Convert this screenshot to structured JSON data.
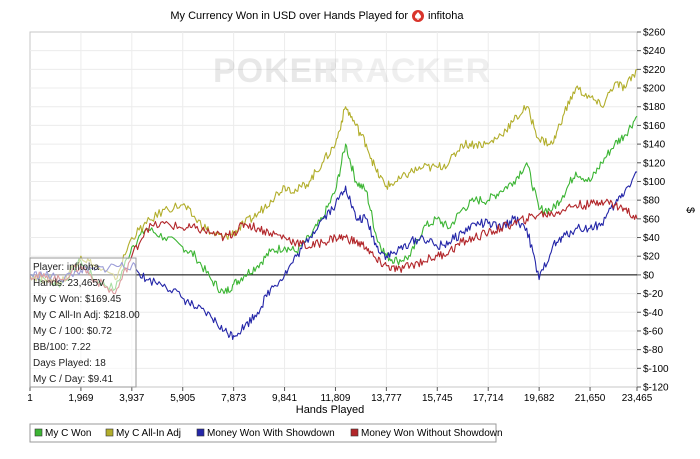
{
  "chart_data": {
    "type": "line",
    "title_text": "My Currency Won in USD over Hands Played for",
    "player_name": "infitoha",
    "watermark": {
      "left": "POKER",
      "right": "TRACKER"
    },
    "xlabel": "Hands Played",
    "ylabel": "$",
    "xlim": [
      1,
      23465
    ],
    "ylim": [
      -120,
      260
    ],
    "x_ticks": [
      1,
      1969,
      3937,
      5905,
      7873,
      9841,
      11809,
      13777,
      15745,
      17714,
      19682,
      21650,
      23465
    ],
    "x_tick_labels": [
      "1",
      "1,969",
      "3,937",
      "5,905",
      "7,873",
      "9,841",
      "11,809",
      "13,777",
      "15,745",
      "17,714",
      "19,682",
      "21,650",
      "23,465"
    ],
    "y_ticks": [
      -120,
      -100,
      -80,
      -60,
      -40,
      -20,
      0,
      20,
      40,
      60,
      80,
      100,
      120,
      140,
      160,
      180,
      200,
      220,
      240,
      260
    ],
    "y_tick_labels": [
      "$-120",
      "$-100",
      "$-80",
      "$-60",
      "$-40",
      "$-20",
      "$0",
      "$20",
      "$40",
      "$60",
      "$80",
      "$100",
      "$120",
      "$140",
      "$160",
      "$180",
      "$200",
      "$220",
      "$240",
      "$260"
    ],
    "grid": true,
    "zero_line": true,
    "legend_position": "bottom",
    "series": [
      {
        "name": "My C Won",
        "color": "#3cb534",
        "points": [
          [
            1,
            0
          ],
          [
            600,
            -5
          ],
          [
            1200,
            -10
          ],
          [
            1969,
            15
          ],
          [
            2500,
            -5
          ],
          [
            3300,
            -15
          ],
          [
            3937,
            30
          ],
          [
            4500,
            50
          ],
          [
            5200,
            40
          ],
          [
            5905,
            30
          ],
          [
            6400,
            20
          ],
          [
            7000,
            -5
          ],
          [
            7500,
            -20
          ],
          [
            7873,
            -10
          ],
          [
            8300,
            0
          ],
          [
            8800,
            10
          ],
          [
            9300,
            25
          ],
          [
            9841,
            30
          ],
          [
            10300,
            25
          ],
          [
            10800,
            40
          ],
          [
            11300,
            60
          ],
          [
            11809,
            90
          ],
          [
            12200,
            140
          ],
          [
            12600,
            100
          ],
          [
            13000,
            90
          ],
          [
            13400,
            40
          ],
          [
            13777,
            20
          ],
          [
            14200,
            15
          ],
          [
            14700,
            20
          ],
          [
            15200,
            50
          ],
          [
            15745,
            60
          ],
          [
            16200,
            50
          ],
          [
            16700,
            70
          ],
          [
            17200,
            80
          ],
          [
            17714,
            80
          ],
          [
            18200,
            90
          ],
          [
            18700,
            100
          ],
          [
            19200,
            120
          ],
          [
            19682,
            70
          ],
          [
            20200,
            70
          ],
          [
            20600,
            85
          ],
          [
            21100,
            110
          ],
          [
            21650,
            100
          ],
          [
            22100,
            120
          ],
          [
            22600,
            140
          ],
          [
            23000,
            150
          ],
          [
            23465,
            170
          ]
        ]
      },
      {
        "name": "My C All-In Adj",
        "color": "#b2ae2c",
        "points": [
          [
            1,
            0
          ],
          [
            600,
            -5
          ],
          [
            1200,
            -8
          ],
          [
            1969,
            20
          ],
          [
            2500,
            10
          ],
          [
            3300,
            -5
          ],
          [
            3937,
            40
          ],
          [
            4500,
            55
          ],
          [
            5200,
            70
          ],
          [
            5905,
            75
          ],
          [
            6400,
            60
          ],
          [
            7000,
            45
          ],
          [
            7500,
            40
          ],
          [
            7873,
            45
          ],
          [
            8300,
            55
          ],
          [
            8800,
            65
          ],
          [
            9300,
            80
          ],
          [
            9841,
            95
          ],
          [
            10300,
            90
          ],
          [
            10800,
            100
          ],
          [
            11300,
            120
          ],
          [
            11809,
            140
          ],
          [
            12200,
            180
          ],
          [
            12600,
            160
          ],
          [
            13000,
            140
          ],
          [
            13400,
            110
          ],
          [
            13777,
            95
          ],
          [
            14200,
            100
          ],
          [
            14700,
            110
          ],
          [
            15200,
            115
          ],
          [
            15745,
            115
          ],
          [
            16200,
            120
          ],
          [
            16700,
            140
          ],
          [
            17200,
            140
          ],
          [
            17714,
            140
          ],
          [
            18200,
            150
          ],
          [
            18700,
            165
          ],
          [
            19200,
            180
          ],
          [
            19682,
            145
          ],
          [
            20200,
            140
          ],
          [
            20600,
            170
          ],
          [
            21100,
            200
          ],
          [
            21650,
            190
          ],
          [
            22100,
            180
          ],
          [
            22600,
            205
          ],
          [
            23000,
            200
          ],
          [
            23465,
            220
          ]
        ]
      },
      {
        "name": "Money Won With Showdown",
        "color": "#2426a8",
        "points": [
          [
            1,
            0
          ],
          [
            600,
            0
          ],
          [
            1200,
            -5
          ],
          [
            1969,
            5
          ],
          [
            2500,
            5
          ],
          [
            3300,
            10
          ],
          [
            3937,
            10
          ],
          [
            4500,
            -5
          ],
          [
            5200,
            -10
          ],
          [
            5905,
            -25
          ],
          [
            6400,
            -35
          ],
          [
            7000,
            -45
          ],
          [
            7500,
            -60
          ],
          [
            7873,
            -65
          ],
          [
            8300,
            -55
          ],
          [
            8800,
            -40
          ],
          [
            9300,
            -15
          ],
          [
            9841,
            0
          ],
          [
            10300,
            20
          ],
          [
            10800,
            40
          ],
          [
            11300,
            60
          ],
          [
            11809,
            75
          ],
          [
            12200,
            95
          ],
          [
            12600,
            60
          ],
          [
            13000,
            60
          ],
          [
            13400,
            30
          ],
          [
            13777,
            20
          ],
          [
            14200,
            25
          ],
          [
            14700,
            35
          ],
          [
            15200,
            40
          ],
          [
            15745,
            30
          ],
          [
            16200,
            35
          ],
          [
            16700,
            45
          ],
          [
            17200,
            55
          ],
          [
            17714,
            55
          ],
          [
            18200,
            50
          ],
          [
            18700,
            60
          ],
          [
            19200,
            50
          ],
          [
            19682,
            -5
          ],
          [
            20200,
            30
          ],
          [
            20600,
            40
          ],
          [
            21100,
            50
          ],
          [
            21650,
            50
          ],
          [
            22100,
            55
          ],
          [
            22600,
            75
          ],
          [
            23000,
            90
          ],
          [
            23465,
            110
          ]
        ]
      },
      {
        "name": "Money Won Without Showdown",
        "color": "#b2262a",
        "points": [
          [
            1,
            0
          ],
          [
            600,
            -3
          ],
          [
            1200,
            -5
          ],
          [
            1969,
            10
          ],
          [
            2500,
            -5
          ],
          [
            3300,
            -20
          ],
          [
            3937,
            20
          ],
          [
            4500,
            50
          ],
          [
            5200,
            55
          ],
          [
            5905,
            50
          ],
          [
            6400,
            50
          ],
          [
            7000,
            45
          ],
          [
            7500,
            40
          ],
          [
            7873,
            45
          ],
          [
            8300,
            55
          ],
          [
            8800,
            50
          ],
          [
            9300,
            45
          ],
          [
            9841,
            40
          ],
          [
            10300,
            35
          ],
          [
            10800,
            30
          ],
          [
            11300,
            35
          ],
          [
            11809,
            40
          ],
          [
            12200,
            40
          ],
          [
            12600,
            35
          ],
          [
            13000,
            30
          ],
          [
            13400,
            15
          ],
          [
            13777,
            10
          ],
          [
            14200,
            5
          ],
          [
            14700,
            10
          ],
          [
            15200,
            15
          ],
          [
            15745,
            20
          ],
          [
            16200,
            25
          ],
          [
            16700,
            35
          ],
          [
            17200,
            40
          ],
          [
            17714,
            45
          ],
          [
            18200,
            50
          ],
          [
            18700,
            55
          ],
          [
            19200,
            60
          ],
          [
            19682,
            65
          ],
          [
            20200,
            65
          ],
          [
            20600,
            70
          ],
          [
            21100,
            75
          ],
          [
            21650,
            75
          ],
          [
            22100,
            80
          ],
          [
            22600,
            75
          ],
          [
            23000,
            70
          ],
          [
            23465,
            60
          ]
        ]
      }
    ]
  },
  "stats_box": {
    "lines": [
      "Player: infitoha",
      "Hands: 23,465V",
      "My C Won: $169.45",
      "My C All-In Adj: $218.00",
      "My C / 100: $0.72",
      "BB/100: 7.22",
      "Days Played: 18",
      "My C / Day: $9.41"
    ]
  }
}
